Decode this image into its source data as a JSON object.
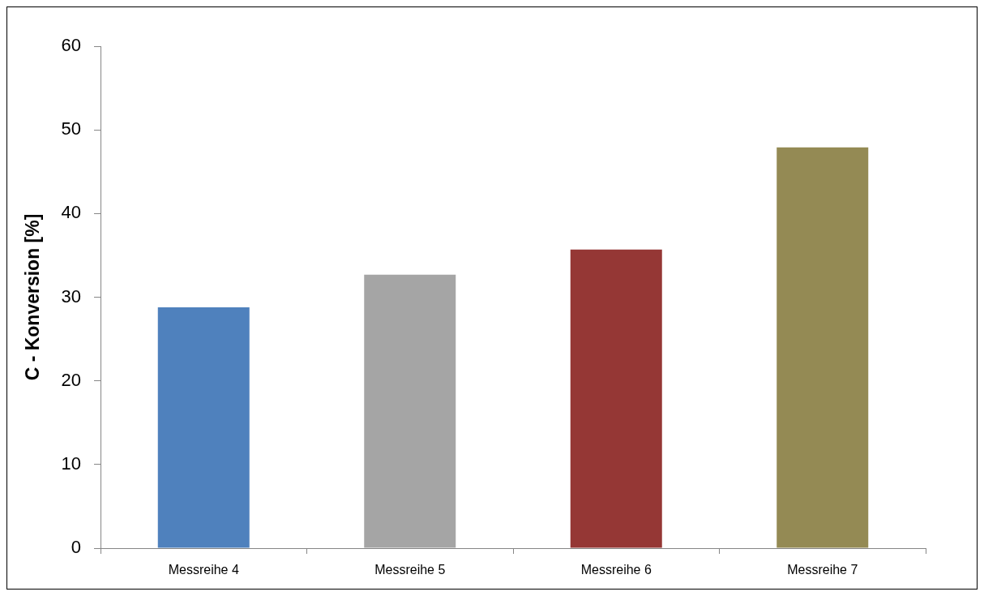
{
  "chart_data": {
    "type": "bar",
    "ylabel": "C - Konversion [%]",
    "categories": [
      "Messreihe 4",
      "Messreihe 5",
      "Messreihe 6",
      "Messreihe 7"
    ],
    "values": [
      28.8,
      32.7,
      35.7,
      47.9
    ],
    "colors": [
      "#4f81bd",
      "#a5a5a5",
      "#953735",
      "#948a54"
    ],
    "ylim": [
      0,
      60
    ],
    "yticks": [
      0,
      10,
      20,
      30,
      40,
      50,
      60
    ]
  }
}
